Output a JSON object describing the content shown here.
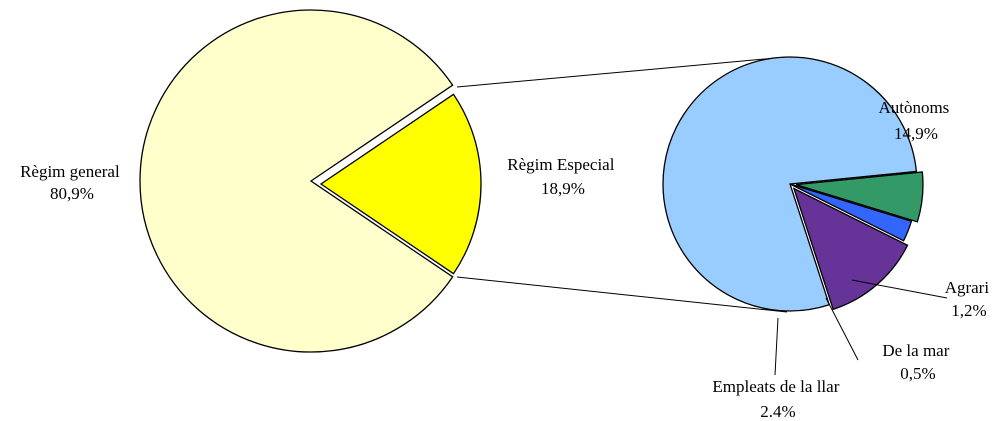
{
  "chart_data": [
    {
      "type": "pie",
      "slices": [
        {
          "label": "Règim general",
          "value_text": "80,9%",
          "value": 80.9,
          "color": "#ffffcc"
        },
        {
          "label": "Règim Especial",
          "value_text": "18,9%",
          "value": 18.9,
          "color": "#ffff00"
        }
      ]
    },
    {
      "type": "pie",
      "slices": [
        {
          "label": "Autònoms",
          "value_text": "14,9%",
          "value": 14.9,
          "color": "#99ccff"
        },
        {
          "label": "Agrari",
          "value_text": "1,2%",
          "value": 1.2,
          "color": "#339966"
        },
        {
          "label": "De la mar",
          "value_text": "0,5%",
          "value": 0.5,
          "color": "#3366ff"
        },
        {
          "label": "Empleats de la llar",
          "value_text": "2.4%",
          "value": 2.4,
          "color": "#663399"
        }
      ]
    }
  ]
}
